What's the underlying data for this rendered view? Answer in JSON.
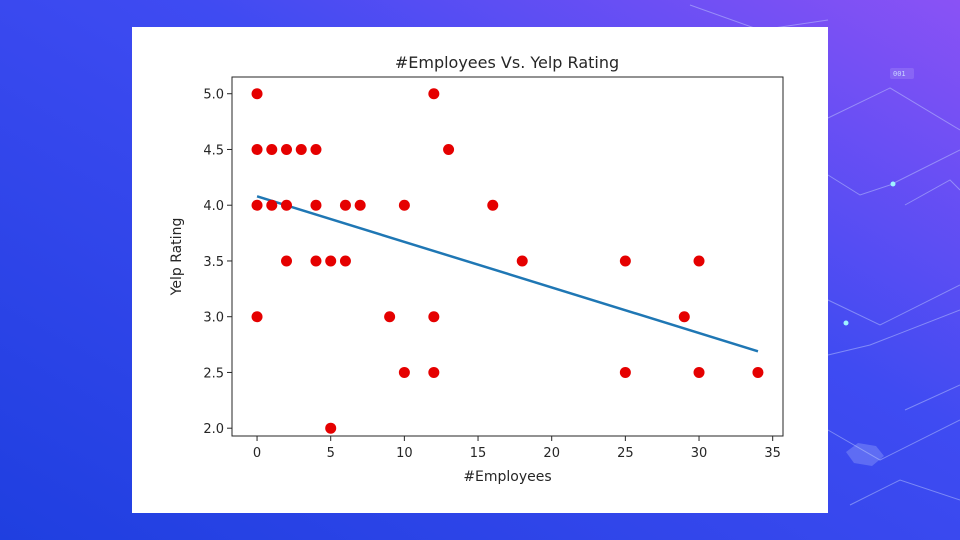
{
  "slide": {
    "background_colors": [
      "#1f3fe0",
      "#3f4bf2",
      "#8a52f5"
    ],
    "deco_tag": "001"
  },
  "colors": {
    "point": "#e50000",
    "trend_line": "#1f77b4",
    "axis": "#262626"
  },
  "chart_data": {
    "type": "scatter",
    "title": "#Employees Vs. Yelp Rating",
    "xlabel": "#Employees",
    "ylabel": "Yelp Rating",
    "xlim": [
      -1.7,
      35.7
    ],
    "ylim": [
      1.93,
      5.15
    ],
    "xticks": [
      0,
      5,
      10,
      15,
      20,
      25,
      30,
      35
    ],
    "yticks": [
      2.0,
      2.5,
      3.0,
      3.5,
      4.0,
      4.5,
      5.0
    ],
    "grid": false,
    "points": [
      {
        "x": 0,
        "y": 5.0
      },
      {
        "x": 0,
        "y": 4.5
      },
      {
        "x": 0,
        "y": 4.0
      },
      {
        "x": 0,
        "y": 3.0
      },
      {
        "x": 1,
        "y": 4.5
      },
      {
        "x": 1,
        "y": 4.0
      },
      {
        "x": 2,
        "y": 4.5
      },
      {
        "x": 2,
        "y": 4.0
      },
      {
        "x": 2,
        "y": 3.5
      },
      {
        "x": 3,
        "y": 4.5
      },
      {
        "x": 4,
        "y": 4.5
      },
      {
        "x": 4,
        "y": 4.0
      },
      {
        "x": 4,
        "y": 3.5
      },
      {
        "x": 5,
        "y": 3.5
      },
      {
        "x": 5,
        "y": 2.0
      },
      {
        "x": 6,
        "y": 4.0
      },
      {
        "x": 6,
        "y": 3.5
      },
      {
        "x": 7,
        "y": 4.0
      },
      {
        "x": 9,
        "y": 3.0
      },
      {
        "x": 10,
        "y": 4.0
      },
      {
        "x": 10,
        "y": 2.5
      },
      {
        "x": 12,
        "y": 5.0
      },
      {
        "x": 12,
        "y": 3.0
      },
      {
        "x": 12,
        "y": 2.5
      },
      {
        "x": 13,
        "y": 4.5
      },
      {
        "x": 16,
        "y": 4.0
      },
      {
        "x": 18,
        "y": 3.5
      },
      {
        "x": 25,
        "y": 3.5
      },
      {
        "x": 25,
        "y": 2.5
      },
      {
        "x": 29,
        "y": 3.0
      },
      {
        "x": 30,
        "y": 3.5
      },
      {
        "x": 30,
        "y": 2.5
      },
      {
        "x": 34,
        "y": 2.5
      }
    ],
    "trend_line": {
      "x": [
        0,
        34
      ],
      "y": [
        4.08,
        2.69
      ]
    }
  }
}
